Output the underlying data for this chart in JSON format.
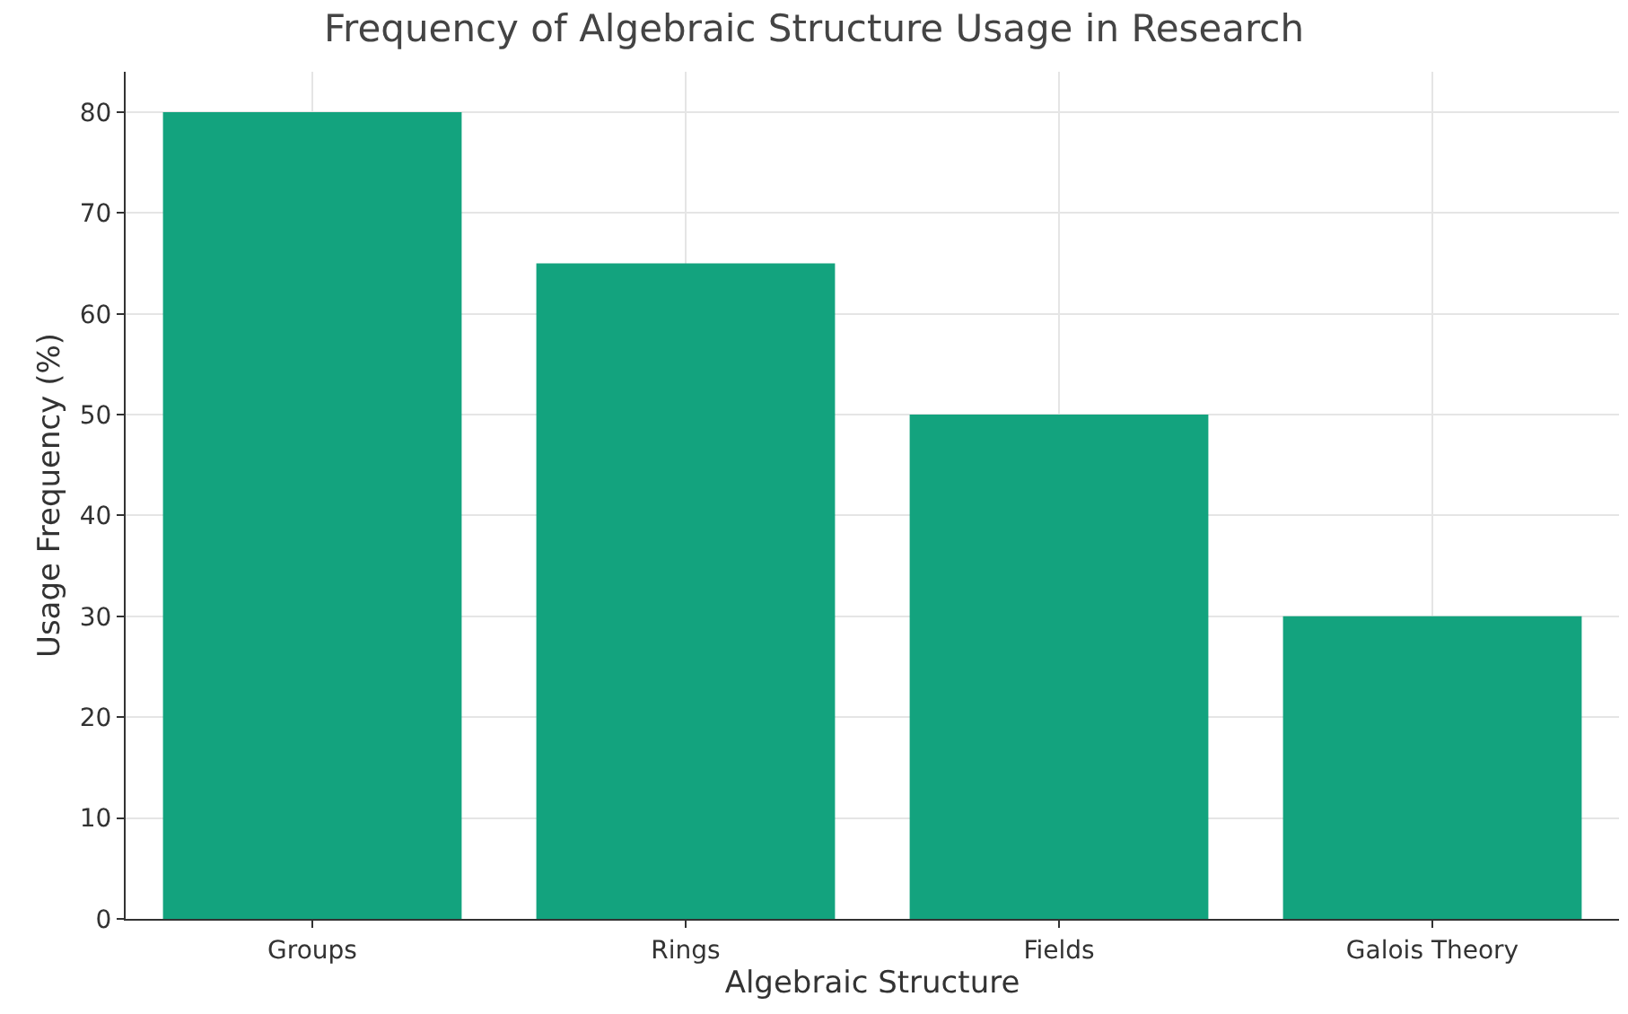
{
  "chart_data": {
    "type": "bar",
    "title": "Frequency of Algebraic Structure Usage in Research",
    "xlabel": "Algebraic Structure",
    "ylabel": "Usage Frequency (%)",
    "categories": [
      "Groups",
      "Rings",
      "Fields",
      "Galois Theory"
    ],
    "values": [
      80,
      65,
      50,
      30
    ],
    "color": "#13a37e",
    "ylim": [
      0,
      84
    ],
    "yticks": [
      0,
      10,
      20,
      30,
      40,
      50,
      60,
      70,
      80
    ],
    "grid": true
  }
}
